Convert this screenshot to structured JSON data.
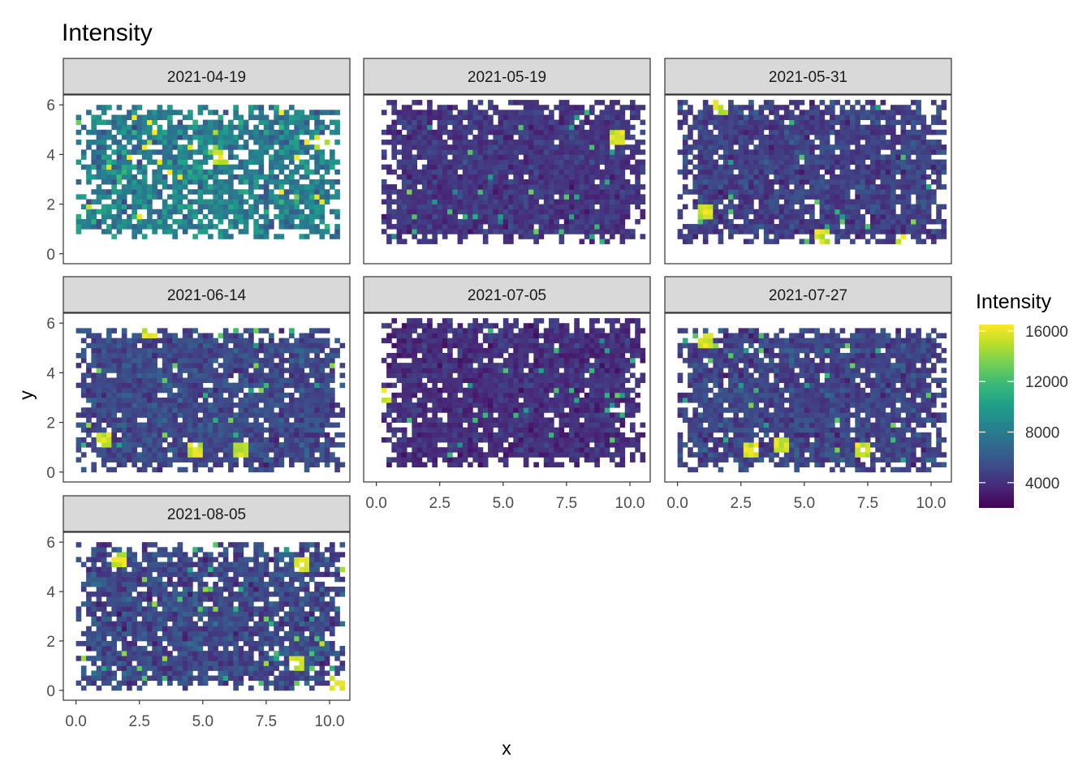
{
  "chart_data": {
    "type": "heatmap",
    "title": "Intensity",
    "xlabel": "x",
    "ylabel": "y",
    "xlim": [
      -0.5,
      10.8
    ],
    "ylim": [
      -0.4,
      6.4
    ],
    "x_ticks": [
      0.0,
      2.5,
      5.0,
      7.5,
      10.0
    ],
    "x_tick_labels": [
      "0.0",
      "2.5",
      "5.0",
      "7.5",
      "10.0"
    ],
    "y_ticks": [
      0,
      2,
      4,
      6
    ],
    "y_tick_labels": [
      "0",
      "2",
      "4",
      "6"
    ],
    "grid": false,
    "cell_size": 0.2,
    "legend": {
      "title": "Intensity",
      "position": "right",
      "colormap": "viridis",
      "colors": [
        "#440154",
        "#482878",
        "#3e4a89",
        "#31688e",
        "#26828e",
        "#1f9e89",
        "#35b779",
        "#6ece58",
        "#b5de2b",
        "#fde725"
      ],
      "min": 2000,
      "max": 16500,
      "ticks": [
        4000,
        8000,
        12000,
        16000
      ],
      "tick_labels": [
        "4000",
        "8000",
        "12000",
        "16000"
      ]
    },
    "panels": [
      {
        "label": "2021-04-19",
        "extent": {
          "x": [
            0.0,
            10.2
          ],
          "y": [
            0.6,
            5.8
          ]
        },
        "mean": 8200,
        "spread": 2600,
        "coverage": 0.8,
        "hot_spots": [
          [
            5.6,
            3.8
          ],
          [
            9.6,
            4.4
          ]
        ]
      },
      {
        "label": "2021-05-19",
        "extent": {
          "x": [
            0.2,
            10.5
          ],
          "y": [
            0.4,
            6.0
          ]
        },
        "mean": 4300,
        "spread": 1200,
        "coverage": 0.95,
        "hot_spots": [
          [
            9.4,
            4.6
          ]
        ]
      },
      {
        "label": "2021-05-31",
        "extent": {
          "x": [
            0.0,
            10.5
          ],
          "y": [
            0.4,
            6.0
          ]
        },
        "mean": 4800,
        "spread": 1400,
        "coverage": 0.93,
        "hot_spots": [
          [
            1.0,
            1.6
          ],
          [
            1.6,
            5.8
          ],
          [
            5.6,
            0.6
          ],
          [
            8.8,
            0.4
          ]
        ]
      },
      {
        "label": "2021-06-14",
        "extent": {
          "x": [
            0.0,
            10.4
          ],
          "y": [
            0.0,
            5.7
          ]
        },
        "mean": 5200,
        "spread": 1500,
        "coverage": 0.93,
        "hot_spots": [
          [
            2.8,
            5.6
          ],
          [
            4.6,
            0.8
          ],
          [
            6.4,
            0.8
          ],
          [
            1.0,
            1.2
          ]
        ]
      },
      {
        "label": "2021-07-05",
        "extent": {
          "x": [
            0.2,
            10.4
          ],
          "y": [
            0.2,
            6.0
          ]
        },
        "mean": 4000,
        "spread": 1200,
        "coverage": 0.94,
        "hot_spots": [
          [
            0.2,
            3.0
          ]
        ]
      },
      {
        "label": "2021-07-27",
        "extent": {
          "x": [
            0.0,
            10.4
          ],
          "y": [
            0.0,
            5.7
          ]
        },
        "mean": 5000,
        "spread": 1500,
        "coverage": 0.92,
        "hot_spots": [
          [
            7.2,
            0.8
          ],
          [
            2.8,
            0.8
          ],
          [
            4.0,
            1.0
          ],
          [
            1.0,
            5.2
          ]
        ]
      },
      {
        "label": "2021-08-05",
        "extent": {
          "x": [
            0.0,
            10.5
          ],
          "y": [
            0.0,
            5.8
          ]
        },
        "mean": 5200,
        "spread": 1800,
        "coverage": 0.9,
        "hot_spots": [
          [
            10.2,
            0.2
          ],
          [
            8.8,
            5.0
          ],
          [
            1.6,
            5.2
          ],
          [
            8.6,
            1.0
          ]
        ]
      }
    ]
  }
}
